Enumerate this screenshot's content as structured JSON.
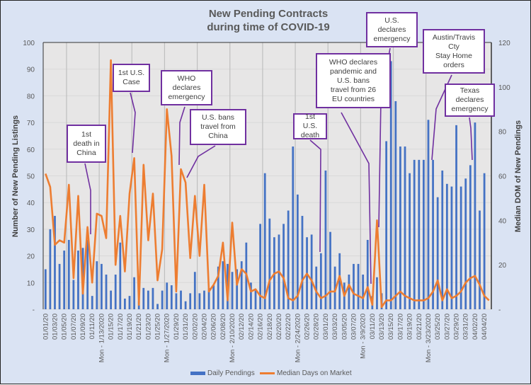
{
  "chart_data": {
    "type": "bar+line",
    "title": [
      "New Pending Contracts",
      "during time of COVID-19"
    ],
    "ylabel_left": "Number of New Pending Listings",
    "ylabel_right": "Median DOM of New Pendings",
    "ylim_left": [
      0,
      100
    ],
    "ylim_right": [
      0,
      120
    ],
    "yticks_left": [
      "-",
      "10",
      "20",
      "30",
      "40",
      "50",
      "60",
      "70",
      "80",
      "90",
      "100"
    ],
    "yticks_right": [
      "-",
      "20",
      "40",
      "60",
      "80",
      "100",
      "120"
    ],
    "grid": true,
    "legend_position": "bottom",
    "x": [
      "01/01/20",
      "01/02/20",
      "01/03/20",
      "01/04/20",
      "01/05/20",
      "01/06/20",
      "01/07/20",
      "01/08/20",
      "01/09/20",
      "01/10/20",
      "01/11/20",
      "01/12/20",
      "Mon - 1/13/2020",
      "01/14/20",
      "01/15/20",
      "01/16/20",
      "01/17/20",
      "01/18/20",
      "01/19/20",
      "01/20/20",
      "01/21/20",
      "01/22/20",
      "01/23/20",
      "01/24/20",
      "01/25/20",
      "01/26/20",
      "Mon - 1/27/2020",
      "01/28/20",
      "01/29/20",
      "01/30/20",
      "01/31/20",
      "02/01/20",
      "02/02/20",
      "02/03/20",
      "02/04/20",
      "02/05/20",
      "02/06/20",
      "02/07/20",
      "02/08/20",
      "02/09/20",
      "Mon - 2/10/2020",
      "02/11/20",
      "02/12/20",
      "02/13/20",
      "02/14/20",
      "02/15/20",
      "02/16/20",
      "02/17/20",
      "02/18/20",
      "02/19/20",
      "02/20/20",
      "02/21/20",
      "02/22/20",
      "02/23/20",
      "Mon - 2/24/2020",
      "02/25/20",
      "02/26/20",
      "02/27/20",
      "02/28/20",
      "02/29/20",
      "03/01/20",
      "03/02/20",
      "03/03/20",
      "03/04/20",
      "03/05/20",
      "03/06/20",
      "03/07/20",
      "03/08/20",
      "Mon - 3/9/2020",
      "03/10/20",
      "03/11/20",
      "03/12/20",
      "03/13/20",
      "03/14/20",
      "03/15/20",
      "03/16/20",
      "03/17/20",
      "03/18/20",
      "03/19/20",
      "03/20/20",
      "03/21/20",
      "03/22/20",
      "Mon - 3/23/2020",
      "03/24/20",
      "03/25/20",
      "03/26/20",
      "03/27/20",
      "03/28/20",
      "03/29/20",
      "03/30/20",
      "03/31/20",
      "04/01/20",
      "04/02/20",
      "04/03/20",
      "04/04/20",
      "04/05/20"
    ],
    "x_tick_labels": [
      "01/01/20",
      "01/03/20",
      "01/05/20",
      "01/07/20",
      "01/09/20",
      "01/11/20",
      "Mon - 1/13/2020",
      "01/15/20",
      "01/17/20",
      "01/19/20",
      "01/21/20",
      "01/23/20",
      "01/25/20",
      "Mon - 1/27/2020",
      "01/29/20",
      "01/31/20",
      "02/02/20",
      "02/04/20",
      "02/06/20",
      "02/08/20",
      "Mon - 2/10/2020",
      "02/12/20",
      "02/14/20",
      "02/16/20",
      "02/18/20",
      "02/20/20",
      "02/22/20",
      "Mon - 2/24/2020",
      "02/26/20",
      "02/28/20",
      "03/01/20",
      "03/03/20",
      "03/05/20",
      "03/07/20",
      "Mon - 3/9/2020",
      "03/11/20",
      "03/13/20",
      "03/15/20",
      "03/17/20",
      "03/19/20",
      "03/21/20",
      "Mon - 3/23/2020",
      "03/25/20",
      "03/27/20",
      "03/29/20",
      "03/31/20",
      "04/02/20",
      "04/04/20"
    ],
    "series": [
      {
        "name": "Daily Pendings",
        "type": "bar",
        "axis": "left",
        "color": "#4472c4",
        "values": [
          15,
          30,
          35,
          17,
          22,
          26,
          11,
          22,
          23,
          26,
          5,
          18,
          17,
          13,
          7,
          13,
          25,
          4,
          5,
          12,
          3,
          8,
          7,
          8,
          2,
          7,
          10,
          9,
          6,
          7,
          3,
          6,
          14,
          6,
          7,
          8,
          9,
          16,
          18,
          17,
          14,
          15,
          18,
          25,
          10,
          7,
          32,
          51,
          34,
          27,
          28,
          32,
          37,
          61,
          43,
          35,
          27,
          28,
          16,
          21,
          52,
          29,
          16,
          21,
          10,
          13,
          17,
          17,
          13,
          26,
          5,
          12,
          6,
          63,
          93,
          78,
          61,
          61,
          51,
          56,
          56,
          56,
          71,
          56,
          42,
          52,
          47,
          46,
          69,
          46,
          49,
          54,
          70,
          37,
          51,
          0
        ]
      },
      {
        "name": "Median Days on Market",
        "type": "line",
        "axis": "right",
        "color": "#ed7d31",
        "values": [
          61,
          55,
          29,
          31,
          30,
          56,
          14,
          51,
          7,
          37,
          12,
          43,
          42,
          32,
          112,
          20,
          42,
          17,
          52,
          68,
          2,
          65,
          31,
          52,
          13,
          27,
          90,
          69,
          8,
          63,
          57,
          23,
          51,
          24,
          56,
          8,
          11,
          15,
          30,
          4,
          39,
          11,
          18,
          16,
          8,
          9,
          6,
          5,
          13,
          16,
          17,
          14,
          5,
          4,
          6,
          13,
          16,
          13,
          8,
          5,
          6,
          8,
          8,
          15,
          6,
          11,
          7,
          6,
          5,
          10,
          2,
          40,
          1,
          4,
          4,
          6,
          8,
          6,
          5,
          4,
          4,
          4,
          5,
          8,
          13,
          4,
          9,
          5,
          6,
          8,
          12,
          14,
          15,
          11,
          6,
          4
        ]
      }
    ],
    "annotations": [
      {
        "text": "1st\ndeath in\nChina",
        "date": "01/11/20"
      },
      {
        "text": "1st U.S.\nCase",
        "date": "01/21/20"
      },
      {
        "text": "WHO\ndeclares\nemergency",
        "date": "01/30/20"
      },
      {
        "text": "U.S. bans\ntravel from\nChina",
        "date": "01/31/20"
      },
      {
        "text": "1st U.S.\ndeath",
        "date": "02/29/20"
      },
      {
        "text": "WHO declares\npandemic and\nU.S. bans\ntravel from 26\nEU countries",
        "date": "03/11/20"
      },
      {
        "text": "U.S.\ndeclares\nemergency",
        "date": "03/13/20"
      },
      {
        "text": "Austin/Travis\nCty\nStay Home\norders",
        "date": "03/24/20"
      },
      {
        "text": "Texas\ndeclares\nemergency",
        "date": "04/02/20"
      }
    ]
  }
}
